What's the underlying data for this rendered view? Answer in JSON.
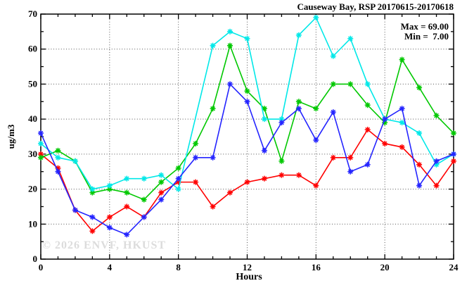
{
  "title": "Causeway Bay, RSP 20170615-20170618",
  "annotation": {
    "max_label": "Max = 69.00",
    "min_label": "Min =  7.00"
  },
  "watermark": "© 2026 ENVF, HKUST",
  "chart_data": {
    "type": "line",
    "title": "Causeway Bay, RSP 20170615-20170618",
    "xlabel": "Hours",
    "ylabel": "ug/m3",
    "xlim": [
      0,
      24
    ],
    "ylim": [
      0,
      70
    ],
    "xticks": [
      0,
      4,
      8,
      12,
      16,
      20,
      24
    ],
    "yticks": [
      0,
      10,
      20,
      30,
      40,
      50,
      60,
      70
    ],
    "x_minor_step": 1,
    "y_minor_step": 5,
    "grid": "dotted",
    "legend_position": "none",
    "stats": {
      "max": 69.0,
      "min": 7.0
    },
    "x": [
      0,
      1,
      2,
      3,
      4,
      5,
      6,
      7,
      8,
      9,
      10,
      11,
      12,
      13,
      14,
      15,
      16,
      17,
      18,
      19,
      20,
      21,
      22,
      23,
      24
    ],
    "series": [
      {
        "name": "series-red",
        "color": "#ff0000",
        "values": [
          30,
          26,
          14,
          8,
          12,
          15,
          12,
          19,
          22,
          22,
          15,
          19,
          22,
          23,
          24,
          24,
          21,
          29,
          29,
          37,
          33,
          32,
          27,
          21,
          28
        ]
      },
      {
        "name": "series-green",
        "color": "#00c800",
        "values": [
          29,
          31,
          28,
          19,
          20,
          19,
          17,
          22,
          26,
          33,
          43,
          61,
          48,
          43,
          28,
          45,
          43,
          50,
          50,
          44,
          39,
          57,
          49,
          41,
          36
        ]
      },
      {
        "name": "series-cyan",
        "color": "#00e8e8",
        "values": [
          33,
          29,
          28,
          20,
          21,
          23,
          23,
          24,
          20,
          null,
          61,
          65,
          63,
          40,
          40,
          64,
          69,
          58,
          63,
          50,
          40,
          39,
          36,
          27,
          30
        ]
      },
      {
        "name": "series-blue",
        "color": "#2424ff",
        "values": [
          36,
          25,
          14,
          12,
          9,
          7,
          12,
          17,
          23,
          29,
          29,
          50,
          45,
          31,
          39,
          43,
          34,
          42,
          25,
          27,
          40,
          43,
          21,
          28,
          30
        ]
      }
    ]
  },
  "layout_colors": {
    "axis": "#000000",
    "grid": "#555555",
    "background": "#ffffff"
  }
}
